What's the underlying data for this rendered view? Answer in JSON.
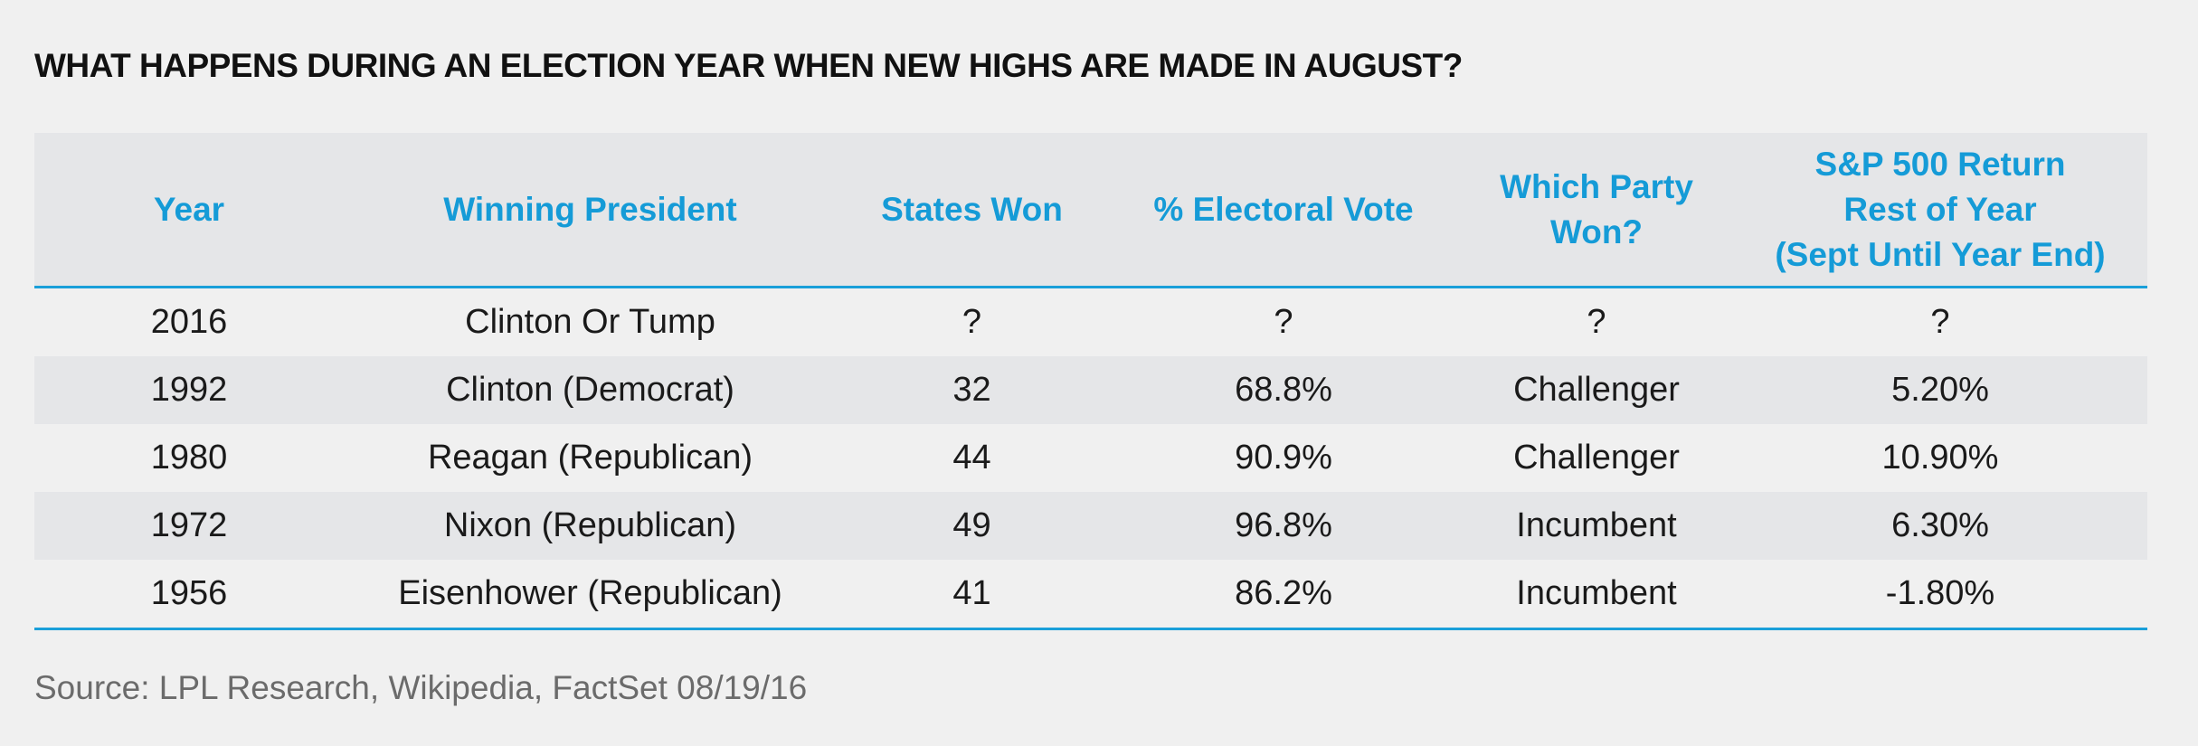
{
  "chart_data": {
    "type": "table",
    "title": "WHAT HAPPENS DURING AN ELECTION YEAR WHEN NEW HIGHS ARE MADE IN AUGUST?",
    "columns": [
      [
        "Year"
      ],
      [
        "Winning President"
      ],
      [
        "States Won"
      ],
      [
        "% Electoral Vote"
      ],
      [
        "Which Party",
        "Won?"
      ],
      [
        "S&P 500 Return",
        "Rest of Year",
        "(Sept Until Year End)"
      ]
    ],
    "rows": [
      [
        "2016",
        "Clinton Or Tump",
        "?",
        "?",
        "?",
        "?"
      ],
      [
        "1992",
        "Clinton (Democrat)",
        "32",
        "68.8%",
        "Challenger",
        "5.20%"
      ],
      [
        "1980",
        "Reagan (Republican)",
        "44",
        "90.9%",
        "Challenger",
        "10.90%"
      ],
      [
        "1972",
        "Nixon (Republican)",
        "49",
        "96.8%",
        "Incumbent",
        "6.30%"
      ],
      [
        "1956",
        "Eisenhower (Republican)",
        "41",
        "86.2%",
        "Incumbent",
        "-1.80%"
      ]
    ],
    "source": "Source: LPL Research, Wikipedia, FactSet   08/19/16"
  },
  "colors": {
    "header_text": "#159bd7",
    "rule": "#1a9fd9",
    "band": "#e5e6e8",
    "background": "#f0f0f0"
  }
}
